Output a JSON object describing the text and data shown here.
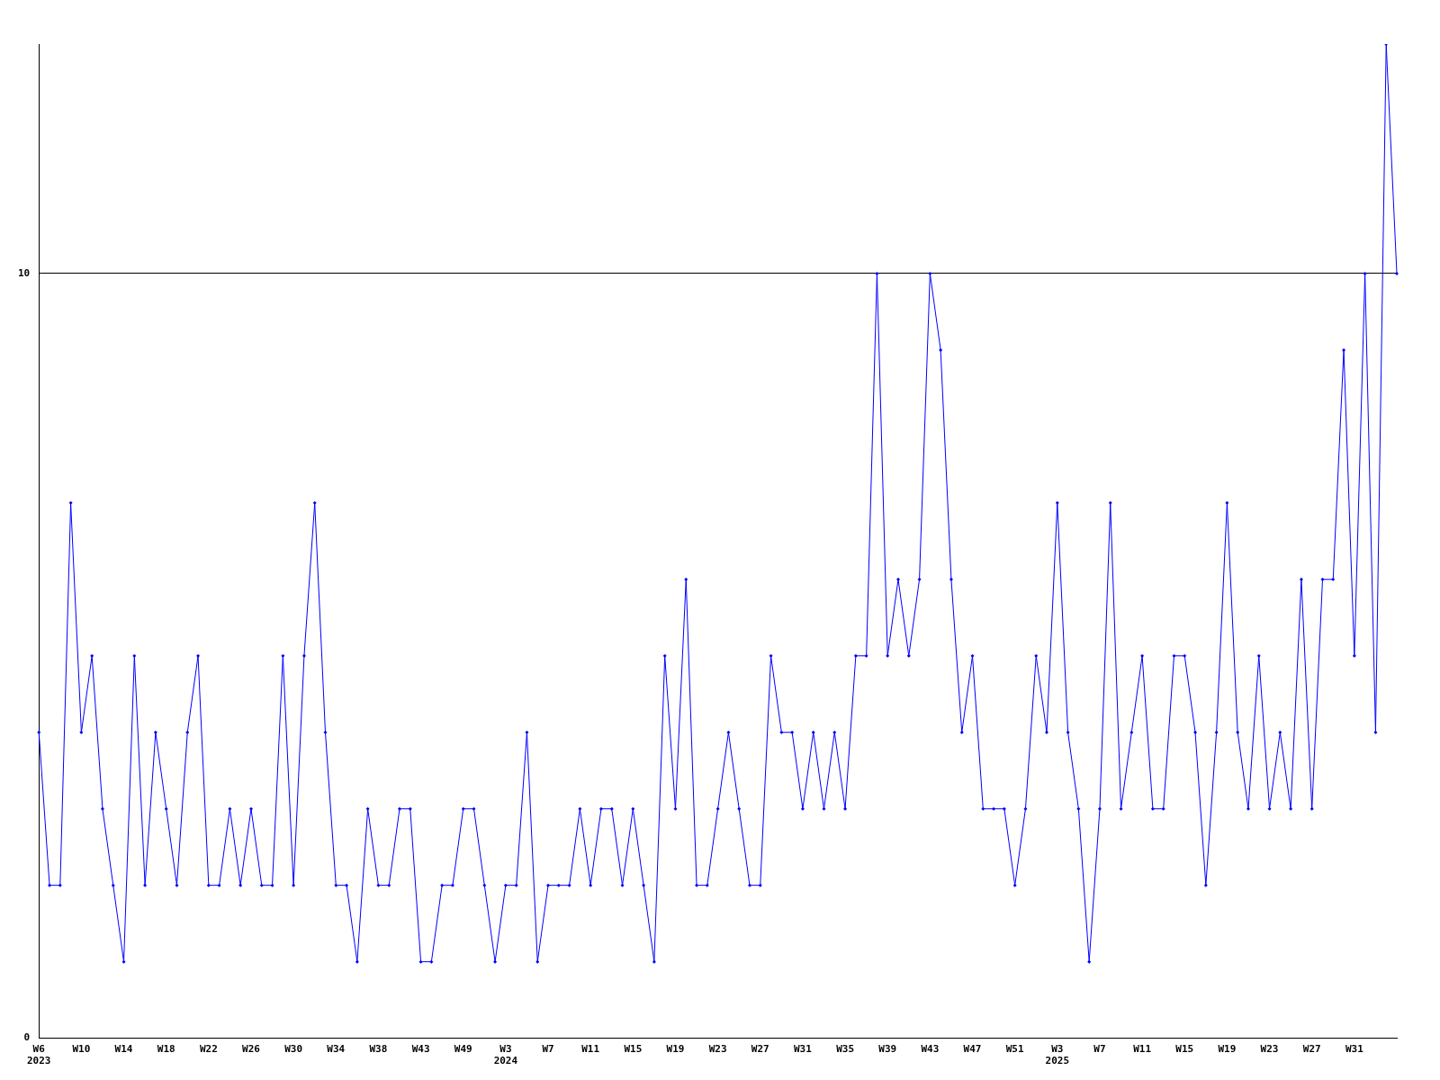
{
  "chart_data": {
    "type": "line",
    "color": "#0000ff",
    "marker": "diamond",
    "grid": "y",
    "legend": false,
    "categories": [
      "W6\n2023",
      null,
      null,
      null,
      "W10",
      null,
      null,
      null,
      "W14",
      null,
      null,
      null,
      "W18",
      null,
      null,
      null,
      "W22",
      null,
      null,
      null,
      "W26",
      null,
      null,
      null,
      "W30",
      null,
      null,
      null,
      "W34",
      null,
      null,
      null,
      "W38",
      null,
      null,
      null,
      "W43",
      null,
      null,
      null,
      "W49",
      null,
      null,
      null,
      "W3\n2024",
      null,
      null,
      null,
      "W7",
      null,
      null,
      null,
      "W11",
      null,
      null,
      null,
      "W15",
      null,
      null,
      null,
      "W19",
      null,
      null,
      null,
      "W23",
      null,
      null,
      null,
      "W27",
      null,
      null,
      null,
      "W31",
      null,
      null,
      null,
      "W35",
      null,
      null,
      null,
      "W39",
      null,
      null,
      null,
      "W43",
      null,
      null,
      null,
      "W47",
      null,
      null,
      null,
      "W51",
      null,
      null,
      null,
      "W3\n2025",
      null,
      null,
      null,
      "W7",
      null,
      null,
      null,
      "W11",
      null,
      null,
      null,
      "W15",
      null,
      null,
      null,
      "W19",
      null,
      null,
      null,
      "W23",
      null,
      null,
      null,
      "W27",
      null,
      null,
      null,
      "W31",
      null,
      null,
      null,
      null
    ],
    "values": [
      4,
      2,
      2,
      7,
      4,
      5,
      3,
      2,
      1,
      5,
      2,
      4,
      3,
      2,
      4,
      5,
      2,
      2,
      3,
      2,
      3,
      2,
      2,
      5,
      2,
      5,
      7,
      4,
      2,
      2,
      1,
      3,
      2,
      2,
      3,
      3,
      1,
      1,
      2,
      2,
      3,
      3,
      2,
      1,
      2,
      2,
      4,
      1,
      2,
      2,
      2,
      3,
      2,
      3,
      3,
      2,
      3,
      2,
      1,
      5,
      3,
      6,
      2,
      2,
      3,
      4,
      3,
      2,
      2,
      5,
      4,
      4,
      3,
      4,
      3,
      4,
      3,
      5,
      5,
      10,
      5,
      6,
      5,
      6,
      10,
      9,
      6,
      4,
      5,
      3,
      3,
      3,
      2,
      3,
      5,
      4,
      7,
      4,
      3,
      1,
      3,
      7,
      3,
      4,
      5,
      3,
      3,
      5,
      5,
      4,
      2,
      4,
      7,
      4,
      3,
      5,
      3,
      4,
      3,
      6,
      3,
      6,
      6,
      9,
      5,
      10,
      4,
      13,
      10
    ],
    "ylim": [
      0,
      13
    ],
    "yticks": [
      0,
      10
    ]
  }
}
